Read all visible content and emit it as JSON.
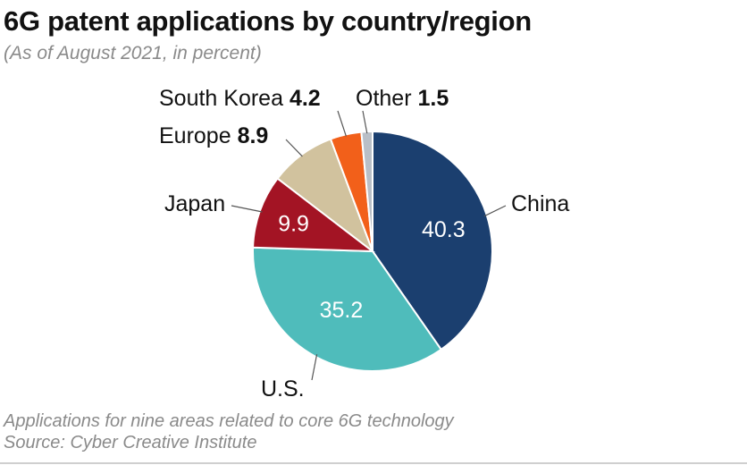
{
  "title": "6G patent applications by country/region",
  "subtitle": "(As of August 2021, in percent)",
  "footnote": "Applications for nine areas related to core 6G technology",
  "source": "Source: Cyber Creative Institute",
  "chart_data": {
    "type": "pie",
    "title": "6G patent applications by country/region",
    "subtitle": "(As of August 2021, in percent)",
    "start": "12 o'clock, clockwise",
    "slices": [
      {
        "label": "China",
        "value": 40.3,
        "color": "#1b3f6f",
        "value_text_color": "#ffffff",
        "label_placement": "inside"
      },
      {
        "label": "U.S.",
        "value": 35.2,
        "color": "#4fbcbb",
        "value_text_color": "#ffffff",
        "label_placement": "inside"
      },
      {
        "label": "Japan",
        "value": 9.9,
        "color": "#a31424",
        "value_text_color": "#ffffff",
        "label_placement": "inside"
      },
      {
        "label": "Europe",
        "value": 8.9,
        "color": "#d1c29e",
        "value_text_color": "#111111",
        "label_placement": "outside"
      },
      {
        "label": "South Korea",
        "value": 4.2,
        "color": "#f2601a",
        "value_text_color": "#111111",
        "label_placement": "outside"
      },
      {
        "label": "Other",
        "value": 1.5,
        "color": "#b9bfc7",
        "value_text_color": "#111111",
        "label_placement": "outside"
      }
    ]
  }
}
